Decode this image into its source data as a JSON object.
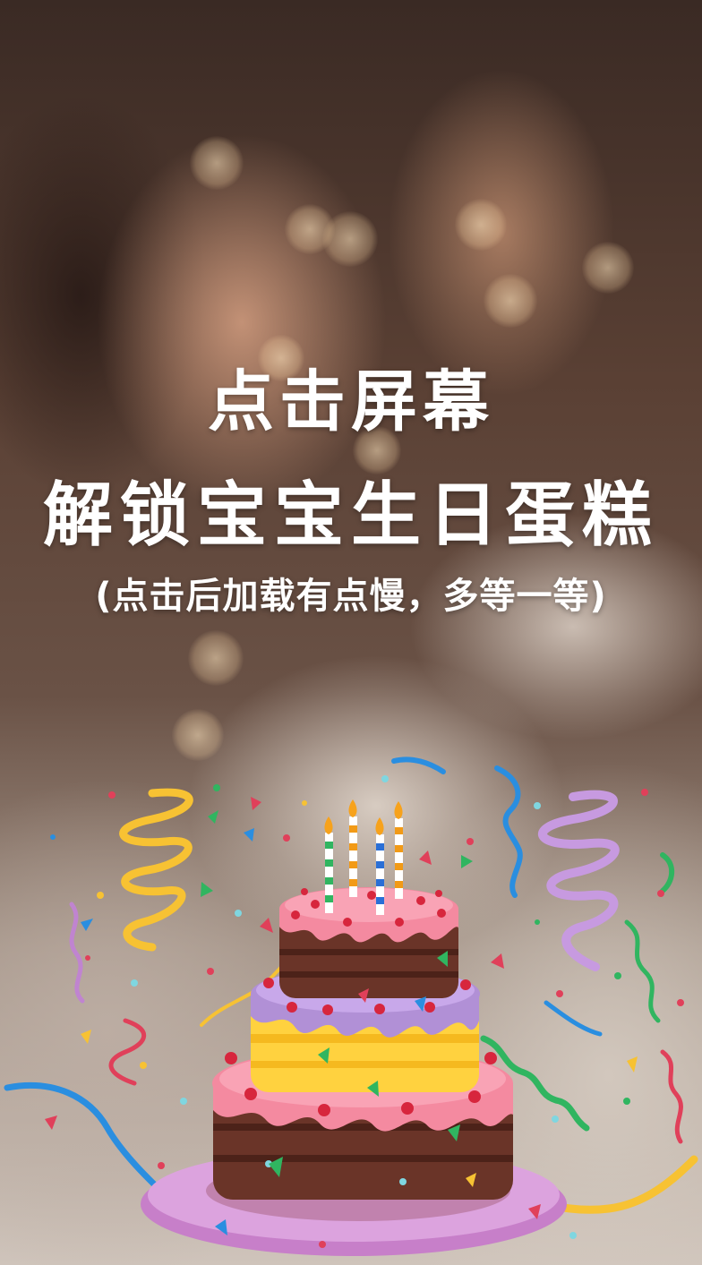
{
  "screen": {
    "action_hint": "点击屏幕",
    "title": "解锁宝宝生日蛋糕",
    "note": "(点击后加载有点慢，多等一等)"
  },
  "colors": {
    "text": "#ffffff",
    "icing_pink": "#f48aa0",
    "icing_purple": "#b190d6",
    "cake_chocolate": "#6a3428",
    "cake_yellow": "#ffd23f",
    "plate": "#d69ad6"
  },
  "icons": [
    "cake-icon",
    "candle-icon",
    "confetti-icon",
    "ribbon-icon"
  ]
}
